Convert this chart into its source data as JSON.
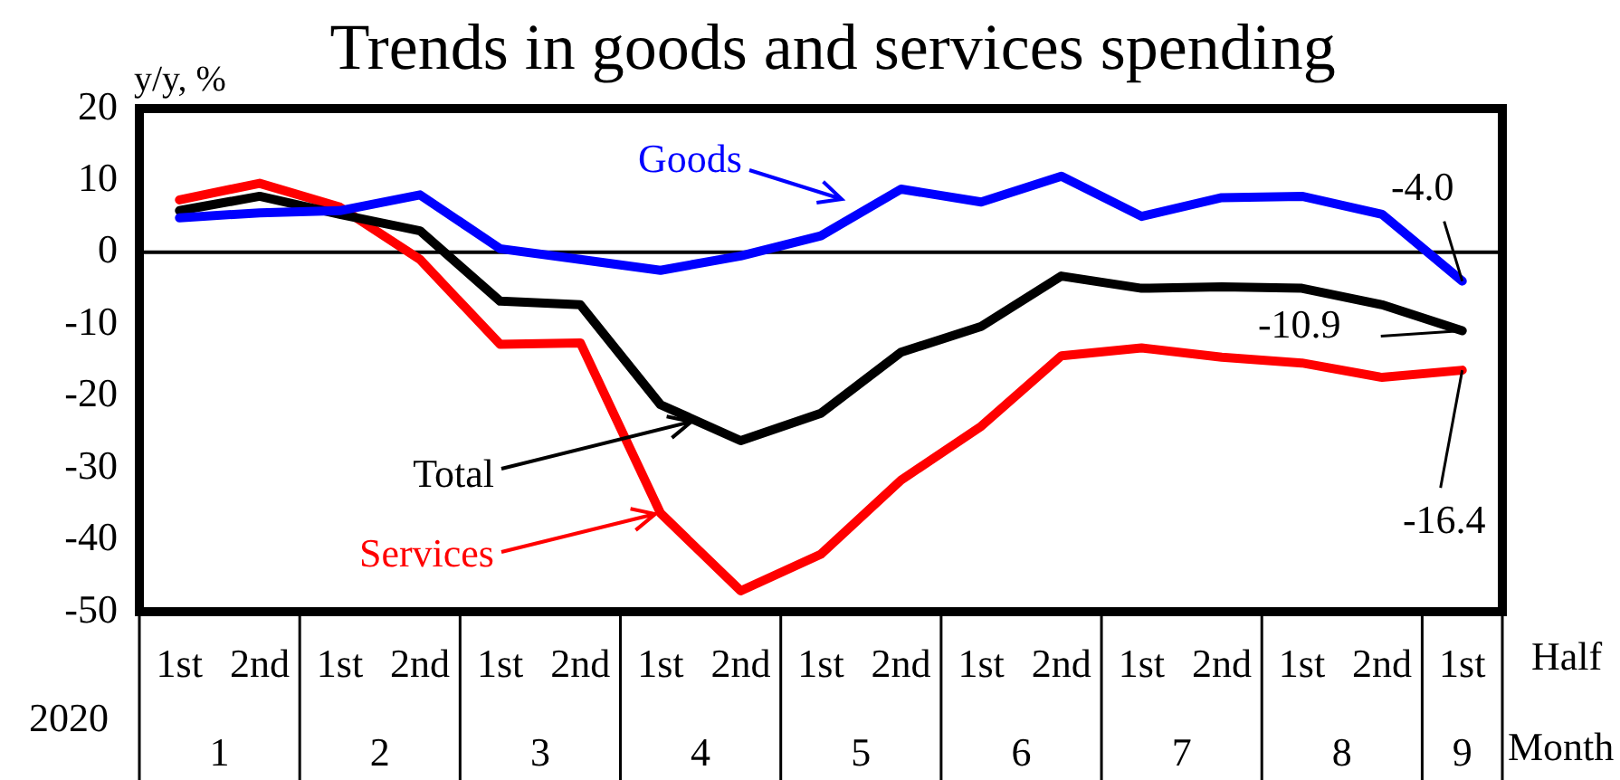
{
  "chart_data": {
    "type": "line",
    "title": "Trends in goods and services spending",
    "ylabel": "y/y, %",
    "categories": [
      "1st",
      "2nd",
      "1st",
      "2nd",
      "1st",
      "2nd",
      "1st",
      "2nd",
      "1st",
      "2nd",
      "1st",
      "2nd",
      "1st",
      "2nd",
      "1st",
      "2nd",
      "1st"
    ],
    "annotations": [
      "2020",
      "Half",
      "Month",
      "1",
      "2",
      "3",
      "4",
      "5",
      "6",
      "7",
      "8",
      "9"
    ],
    "series": [
      {
        "name": "Goods",
        "color": "#0000ff",
        "values": [
          4.8,
          5.5,
          5.8,
          8,
          0.5,
          -1,
          -2.5,
          -0.5,
          2.3,
          8.8,
          7,
          10.6,
          5,
          7.6,
          7.8,
          5.3,
          -4.0
        ],
        "value_labels": [
          null,
          null,
          null,
          null,
          null,
          null,
          null,
          null,
          null,
          null,
          null,
          null,
          null,
          null,
          null,
          null,
          "-4.0"
        ]
      },
      {
        "name": "Total",
        "color": "#000000",
        "values": [
          5.8,
          7.8,
          5.3,
          3,
          -6.8,
          -7.3,
          -21.2,
          -26.2,
          -22.4,
          -13.9,
          -10.3,
          -3.3,
          -5,
          -4.8,
          -5,
          -7.3,
          -10.9
        ],
        "value_labels": [
          null,
          null,
          null,
          null,
          null,
          null,
          null,
          null,
          null,
          null,
          null,
          null,
          null,
          null,
          null,
          null,
          "-10.9"
        ]
      },
      {
        "name": "Services",
        "color": "#ff0000",
        "values": [
          7.3,
          9.6,
          6.3,
          -1,
          -12.8,
          -12.6,
          -36.3,
          -47.1,
          -42,
          -31.7,
          -24.2,
          -14.4,
          -13.3,
          -14.6,
          -15.4,
          -17.4,
          -16.4
        ],
        "value_labels": [
          null,
          null,
          null,
          null,
          null,
          null,
          null,
          null,
          null,
          null,
          null,
          null,
          null,
          null,
          null,
          null,
          "-16.4"
        ]
      }
    ],
    "ylim": [
      -50,
      20
    ],
    "yticks": [
      -50,
      -40,
      -30,
      -20,
      -10,
      0,
      10,
      20
    ],
    "ref_lines": [
      {
        "axis": "y",
        "value": 0,
        "color": "#000000"
      }
    ],
    "grid": false,
    "legend": "left",
    "marker": "none",
    "line_style": "solid"
  }
}
